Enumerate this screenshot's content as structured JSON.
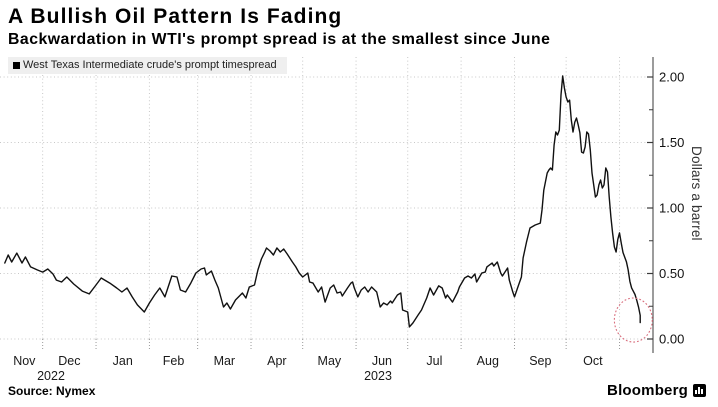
{
  "header": {
    "title": "A Bullish Oil Pattern Is Fading",
    "subtitle": "Backwardation in WTI's prompt spread is at the smallest since June"
  },
  "legend": {
    "series_label": "West Texas Intermediate crude's prompt timespread",
    "marker_color": "#000000"
  },
  "footer": {
    "source": "Source: Nymex",
    "brand": "Bloomberg"
  },
  "chart_data": {
    "type": "line",
    "title": "A Bullish Oil Pattern Is Fading",
    "ylabel": "Dollars a barrel",
    "xlabel": "",
    "ylim": [
      0,
      2.15
    ],
    "grid": "dotted",
    "legend_position": "top-left",
    "line_color": "#111111",
    "y_axis": {
      "side": "right",
      "major_ticks": [
        0.0,
        0.5,
        1.0,
        1.5,
        2.0
      ],
      "major_labels": [
        "0.00",
        "0.50",
        "1.00",
        "1.50",
        "2.00"
      ],
      "minor_ticks": [
        0.25,
        0.75,
        1.25,
        1.75
      ]
    },
    "x_axis": {
      "month_starts": [
        "2022-12-01",
        "2023-01-01",
        "2023-02-01",
        "2023-03-01",
        "2023-04-01",
        "2023-05-01",
        "2023-06-01",
        "2023-07-01",
        "2023-08-01",
        "2023-09-01",
        "2023-10-01",
        "2023-11-01"
      ],
      "month_labels": [
        "Nov",
        "Dec",
        "Jan",
        "Feb",
        "Mar",
        "Apr",
        "May",
        "Jun",
        "Jul",
        "Aug",
        "Sep",
        "Oct"
      ],
      "year_labels": [
        {
          "text": "2022",
          "x": 51
        },
        {
          "text": "2023",
          "x": 378
        }
      ]
    },
    "annotation": {
      "type": "dotted-ellipse",
      "date": "2023-11-09",
      "value": 0.145,
      "rx_days": 11,
      "ry_value": 0.168,
      "color": "#d96f7e"
    },
    "points": [
      [
        "2022-11-09",
        0.58
      ],
      [
        "2022-11-11",
        0.641
      ],
      [
        "2022-11-13",
        0.588
      ],
      [
        "2022-11-16",
        0.656
      ],
      [
        "2022-11-19",
        0.58
      ],
      [
        "2022-11-21",
        0.626
      ],
      [
        "2022-11-24",
        0.55
      ],
      [
        "2022-11-28",
        0.527
      ],
      [
        "2022-12-01",
        0.511
      ],
      [
        "2022-12-04",
        0.534
      ],
      [
        "2022-12-07",
        0.496
      ],
      [
        "2022-12-09",
        0.45
      ],
      [
        "2022-12-12",
        0.435
      ],
      [
        "2022-12-15",
        0.473
      ],
      [
        "2022-12-19",
        0.42
      ],
      [
        "2022-12-24",
        0.366
      ],
      [
        "2022-12-28",
        0.344
      ],
      [
        "2023-01-01",
        0.412
      ],
      [
        "2023-01-04",
        0.466
      ],
      [
        "2023-01-09",
        0.427
      ],
      [
        "2023-01-13",
        0.389
      ],
      [
        "2023-01-16",
        0.359
      ],
      [
        "2023-01-19",
        0.389
      ],
      [
        "2023-01-22",
        0.321
      ],
      [
        "2023-01-25",
        0.26
      ],
      [
        "2023-01-29",
        0.206
      ],
      [
        "2023-02-01",
        0.275
      ],
      [
        "2023-02-04",
        0.336
      ],
      [
        "2023-02-07",
        0.389
      ],
      [
        "2023-02-10",
        0.321
      ],
      [
        "2023-02-14",
        0.481
      ],
      [
        "2023-02-17",
        0.473
      ],
      [
        "2023-02-19",
        0.374
      ],
      [
        "2023-02-22",
        0.359
      ],
      [
        "2023-02-25",
        0.427
      ],
      [
        "2023-02-28",
        0.504
      ],
      [
        "2023-03-03",
        0.534
      ],
      [
        "2023-03-05",
        0.542
      ],
      [
        "2023-03-06",
        0.489
      ],
      [
        "2023-03-09",
        0.519
      ],
      [
        "2023-03-11",
        0.45
      ],
      [
        "2023-03-13",
        0.389
      ],
      [
        "2023-03-16",
        0.244
      ],
      [
        "2023-03-18",
        0.275
      ],
      [
        "2023-03-20",
        0.229
      ],
      [
        "2023-03-23",
        0.298
      ],
      [
        "2023-03-27",
        0.351
      ],
      [
        "2023-03-29",
        0.313
      ],
      [
        "2023-03-31",
        0.397
      ],
      [
        "2023-04-03",
        0.412
      ],
      [
        "2023-04-05",
        0.527
      ],
      [
        "2023-04-07",
        0.611
      ],
      [
        "2023-04-09",
        0.664
      ],
      [
        "2023-04-10",
        0.695
      ],
      [
        "2023-04-12",
        0.672
      ],
      [
        "2023-04-14",
        0.641
      ],
      [
        "2023-04-16",
        0.695
      ],
      [
        "2023-04-18",
        0.664
      ],
      [
        "2023-04-20",
        0.687
      ],
      [
        "2023-04-22",
        0.649
      ],
      [
        "2023-04-25",
        0.588
      ],
      [
        "2023-04-27",
        0.55
      ],
      [
        "2023-04-29",
        0.504
      ],
      [
        "2023-05-01",
        0.473
      ],
      [
        "2023-05-04",
        0.504
      ],
      [
        "2023-05-05",
        0.435
      ],
      [
        "2023-05-07",
        0.427
      ],
      [
        "2023-05-10",
        0.359
      ],
      [
        "2023-05-12",
        0.397
      ],
      [
        "2023-05-14",
        0.282
      ],
      [
        "2023-05-17",
        0.389
      ],
      [
        "2023-05-19",
        0.412
      ],
      [
        "2023-05-21",
        0.351
      ],
      [
        "2023-05-23",
        0.359
      ],
      [
        "2023-05-24",
        0.328
      ],
      [
        "2023-05-27",
        0.389
      ],
      [
        "2023-05-29",
        0.427
      ],
      [
        "2023-05-30",
        0.435
      ],
      [
        "2023-05-31",
        0.389
      ],
      [
        "2023-06-02",
        0.321
      ],
      [
        "2023-06-04",
        0.374
      ],
      [
        "2023-06-06",
        0.397
      ],
      [
        "2023-06-08",
        0.359
      ],
      [
        "2023-06-10",
        0.397
      ],
      [
        "2023-06-13",
        0.359
      ],
      [
        "2023-06-15",
        0.244
      ],
      [
        "2023-06-17",
        0.275
      ],
      [
        "2023-06-19",
        0.26
      ],
      [
        "2023-06-21",
        0.29
      ],
      [
        "2023-06-22",
        0.275
      ],
      [
        "2023-06-25",
        0.336
      ],
      [
        "2023-06-27",
        0.351
      ],
      [
        "2023-06-28",
        0.221
      ],
      [
        "2023-07-01",
        0.206
      ],
      [
        "2023-07-02",
        0.092
      ],
      [
        "2023-07-04",
        0.122
      ],
      [
        "2023-07-07",
        0.183
      ],
      [
        "2023-07-09",
        0.221
      ],
      [
        "2023-07-12",
        0.313
      ],
      [
        "2023-07-14",
        0.389
      ],
      [
        "2023-07-16",
        0.336
      ],
      [
        "2023-07-19",
        0.405
      ],
      [
        "2023-07-21",
        0.389
      ],
      [
        "2023-07-23",
        0.313
      ],
      [
        "2023-07-24",
        0.336
      ],
      [
        "2023-07-27",
        0.282
      ],
      [
        "2023-07-30",
        0.359
      ],
      [
        "2023-07-31",
        0.397
      ],
      [
        "2023-08-03",
        0.466
      ],
      [
        "2023-08-05",
        0.481
      ],
      [
        "2023-08-07",
        0.466
      ],
      [
        "2023-08-09",
        0.496
      ],
      [
        "2023-08-10",
        0.435
      ],
      [
        "2023-08-13",
        0.504
      ],
      [
        "2023-08-15",
        0.511
      ],
      [
        "2023-08-16",
        0.55
      ],
      [
        "2023-08-19",
        0.58
      ],
      [
        "2023-08-20",
        0.557
      ],
      [
        "2023-08-22",
        0.588
      ],
      [
        "2023-08-24",
        0.504
      ],
      [
        "2023-08-25",
        0.481
      ],
      [
        "2023-08-28",
        0.542
      ],
      [
        "2023-08-29",
        0.45
      ],
      [
        "2023-08-31",
        0.359
      ],
      [
        "2023-09-01",
        0.321
      ],
      [
        "2023-09-03",
        0.397
      ],
      [
        "2023-09-05",
        0.473
      ],
      [
        "2023-09-06",
        0.618
      ],
      [
        "2023-09-08",
        0.74
      ],
      [
        "2023-09-10",
        0.847
      ],
      [
        "2023-09-13",
        0.87
      ],
      [
        "2023-09-16",
        0.885
      ],
      [
        "2023-09-17",
        0.985
      ],
      [
        "2023-09-18",
        1.137
      ],
      [
        "2023-09-20",
        1.267
      ],
      [
        "2023-09-21",
        1.29
      ],
      [
        "2023-09-22",
        1.305
      ],
      [
        "2023-09-23",
        1.29
      ],
      [
        "2023-09-24",
        1.481
      ],
      [
        "2023-09-25",
        1.58
      ],
      [
        "2023-09-26",
        1.557
      ],
      [
        "2023-09-27",
        1.595
      ],
      [
        "2023-09-28",
        1.863
      ],
      [
        "2023-09-29",
        2.008
      ],
      [
        "2023-09-30",
        1.916
      ],
      [
        "2023-10-01",
        1.847
      ],
      [
        "2023-10-02",
        1.809
      ],
      [
        "2023-10-03",
        1.824
      ],
      [
        "2023-10-04",
        1.672
      ],
      [
        "2023-10-05",
        1.58
      ],
      [
        "2023-10-06",
        1.656
      ],
      [
        "2023-10-07",
        1.687
      ],
      [
        "2023-10-08",
        1.634
      ],
      [
        "2023-10-09",
        1.573
      ],
      [
        "2023-10-10",
        1.427
      ],
      [
        "2023-10-11",
        1.42
      ],
      [
        "2023-10-12",
        1.466
      ],
      [
        "2023-10-13",
        1.58
      ],
      [
        "2023-10-14",
        1.565
      ],
      [
        "2023-10-15",
        1.443
      ],
      [
        "2023-10-16",
        1.267
      ],
      [
        "2023-10-17",
        1.176
      ],
      [
        "2023-10-18",
        1.084
      ],
      [
        "2023-10-19",
        1.099
      ],
      [
        "2023-10-20",
        1.176
      ],
      [
        "2023-10-21",
        1.214
      ],
      [
        "2023-10-22",
        1.153
      ],
      [
        "2023-10-23",
        1.176
      ],
      [
        "2023-10-24",
        1.305
      ],
      [
        "2023-10-25",
        1.275
      ],
      [
        "2023-10-26",
        1.084
      ],
      [
        "2023-10-27",
        0.931
      ],
      [
        "2023-10-28",
        0.809
      ],
      [
        "2023-10-29",
        0.702
      ],
      [
        "2023-10-30",
        0.664
      ],
      [
        "2023-10-31",
        0.76
      ],
      [
        "2023-11-01",
        0.81
      ],
      [
        "2023-11-02",
        0.73
      ],
      [
        "2023-11-03",
        0.66
      ],
      [
        "2023-11-05",
        0.59
      ],
      [
        "2023-11-06",
        0.53
      ],
      [
        "2023-11-07",
        0.44
      ],
      [
        "2023-11-08",
        0.39
      ],
      [
        "2023-11-09",
        0.365
      ],
      [
        "2023-11-10",
        0.34
      ],
      [
        "2023-11-11",
        0.295
      ],
      [
        "2023-11-12",
        0.245
      ],
      [
        "2023-11-13",
        0.18
      ],
      [
        "2023-11-13",
        0.125
      ]
    ]
  }
}
